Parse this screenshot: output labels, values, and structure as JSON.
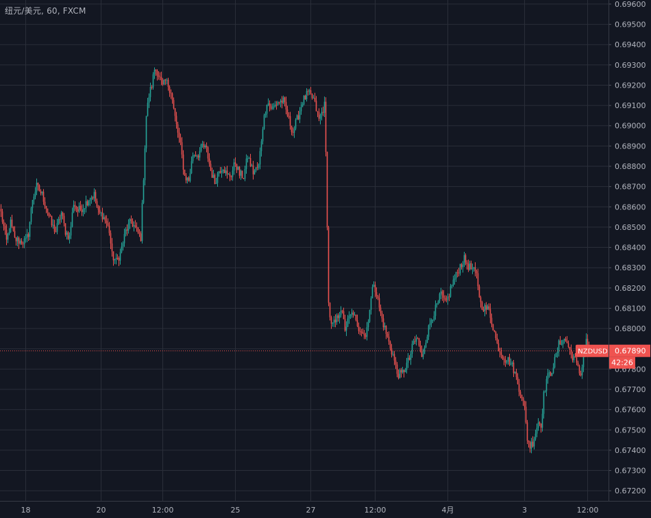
{
  "symbol_header": "纽元/美元, 60, FXCM",
  "colors": {
    "background": "#131722",
    "grid": "#2a2e39",
    "up": "#26a69a",
    "down": "#ef5350",
    "axis_text": "#b2b5be",
    "price_line": "#ef5350"
  },
  "chart_data": {
    "type": "candlestick",
    "title": "纽元/美元, 60, FXCM",
    "symbol": "NZDUSD",
    "last_price": "0.67890",
    "countdown": "42:26",
    "grid": true,
    "ylim": [
      0.6715,
      0.6962
    ],
    "y_ticks": [
      "0.69600",
      "0.69500",
      "0.69400",
      "0.69300",
      "0.69200",
      "0.69100",
      "0.69000",
      "0.68900",
      "0.68800",
      "0.68700",
      "0.68600",
      "0.68500",
      "0.68400",
      "0.68300",
      "0.68200",
      "0.68100",
      "0.68000",
      "0.67900",
      "0.67800",
      "0.67700",
      "0.67600",
      "0.67500",
      "0.67400",
      "0.67300",
      "0.67200"
    ],
    "x_ticks": [
      {
        "label": "18",
        "index": 18
      },
      {
        "label": "20",
        "index": 73
      },
      {
        "label": "12:00",
        "index": 118
      },
      {
        "label": "25",
        "index": 171
      },
      {
        "label": "27",
        "index": 226
      },
      {
        "label": "12:00",
        "index": 273
      },
      {
        "label": "4月",
        "index": 326
      },
      {
        "label": "3",
        "index": 382
      },
      {
        "label": "12:00",
        "index": 428
      }
    ],
    "n_candles": 431,
    "anchors": [
      [
        0,
        0.6857
      ],
      [
        4,
        0.6843
      ],
      [
        7,
        0.6852
      ],
      [
        10,
        0.6844
      ],
      [
        14,
        0.6843
      ],
      [
        18,
        0.6843
      ],
      [
        20,
        0.6847
      ],
      [
        23,
        0.6864
      ],
      [
        26,
        0.687
      ],
      [
        30,
        0.6866
      ],
      [
        33,
        0.686
      ],
      [
        37,
        0.6851
      ],
      [
        40,
        0.6848
      ],
      [
        44,
        0.6857
      ],
      [
        47,
        0.6848
      ],
      [
        50,
        0.6845
      ],
      [
        53,
        0.6862
      ],
      [
        56,
        0.6858
      ],
      [
        60,
        0.686
      ],
      [
        64,
        0.6864
      ],
      [
        68,
        0.6866
      ],
      [
        71,
        0.6857
      ],
      [
        74,
        0.6856
      ],
      [
        77,
        0.6852
      ],
      [
        79,
        0.6848
      ],
      [
        81,
        0.6836
      ],
      [
        84,
        0.6833
      ],
      [
        87,
        0.6837
      ],
      [
        91,
        0.6848
      ],
      [
        95,
        0.6853
      ],
      [
        100,
        0.6847
      ],
      [
        102,
        0.6845
      ],
      [
        104,
        0.6875
      ],
      [
        106,
        0.6905
      ],
      [
        108,
        0.6915
      ],
      [
        110,
        0.692
      ],
      [
        112,
        0.6928
      ],
      [
        114,
        0.6927
      ],
      [
        116,
        0.6923
      ],
      [
        118,
        0.6919
      ],
      [
        120,
        0.6922
      ],
      [
        122,
        0.692
      ],
      [
        124,
        0.6917
      ],
      [
        126,
        0.6908
      ],
      [
        128,
        0.69
      ],
      [
        131,
        0.689
      ],
      [
        134,
        0.6875
      ],
      [
        137,
        0.6873
      ],
      [
        140,
        0.6886
      ],
      [
        144,
        0.6886
      ],
      [
        147,
        0.689
      ],
      [
        150,
        0.6888
      ],
      [
        153,
        0.6878
      ],
      [
        156,
        0.6872
      ],
      [
        159,
        0.6878
      ],
      [
        162,
        0.688
      ],
      [
        165,
        0.6875
      ],
      [
        168,
        0.6876
      ],
      [
        171,
        0.6882
      ],
      [
        174,
        0.6876
      ],
      [
        177,
        0.6875
      ],
      [
        180,
        0.6885
      ],
      [
        184,
        0.6877
      ],
      [
        188,
        0.688
      ],
      [
        191,
        0.69
      ],
      [
        194,
        0.6912
      ],
      [
        198,
        0.6908
      ],
      [
        202,
        0.6912
      ],
      [
        206,
        0.6912
      ],
      [
        210,
        0.6903
      ],
      [
        213,
        0.6897
      ],
      [
        216,
        0.6903
      ],
      [
        220,
        0.6912
      ],
      [
        224,
        0.6916
      ],
      [
        228,
        0.6913
      ],
      [
        232,
        0.6903
      ],
      [
        236,
        0.691
      ],
      [
        237,
        0.6886
      ],
      [
        238,
        0.6852
      ],
      [
        239,
        0.6812
      ],
      [
        241,
        0.6801
      ],
      [
        244,
        0.6803
      ],
      [
        248,
        0.681
      ],
      [
        251,
        0.68
      ],
      [
        254,
        0.6805
      ],
      [
        257,
        0.6808
      ],
      [
        260,
        0.68
      ],
      [
        263,
        0.68
      ],
      [
        266,
        0.6796
      ],
      [
        269,
        0.681
      ],
      [
        272,
        0.6823
      ],
      [
        274,
        0.6817
      ],
      [
        277,
        0.6807
      ],
      [
        280,
        0.68
      ],
      [
        283,
        0.6793
      ],
      [
        286,
        0.6787
      ],
      [
        289,
        0.6778
      ],
      [
        292,
        0.6777
      ],
      [
        295,
        0.6781
      ],
      [
        298,
        0.6785
      ],
      [
        301,
        0.6793
      ],
      [
        304,
        0.6795
      ],
      [
        307,
        0.6785
      ],
      [
        310,
        0.6795
      ],
      [
        314,
        0.6805
      ],
      [
        318,
        0.6811
      ],
      [
        321,
        0.6817
      ],
      [
        324,
        0.6812
      ],
      [
        326,
        0.6815
      ],
      [
        329,
        0.6822
      ],
      [
        332,
        0.6826
      ],
      [
        335,
        0.6831
      ],
      [
        338,
        0.6834
      ],
      [
        341,
        0.6831
      ],
      [
        344,
        0.6829
      ],
      [
        347,
        0.6826
      ],
      [
        350,
        0.6812
      ],
      [
        353,
        0.681
      ],
      [
        356,
        0.6809
      ],
      [
        359,
        0.6801
      ],
      [
        362,
        0.6792
      ],
      [
        365,
        0.6788
      ],
      [
        368,
        0.6785
      ],
      [
        371,
        0.6784
      ],
      [
        374,
        0.678
      ],
      [
        377,
        0.6773
      ],
      [
        380,
        0.6767
      ],
      [
        382,
        0.676
      ],
      [
        384,
        0.6746
      ],
      [
        386,
        0.6742
      ],
      [
        388,
        0.6744
      ],
      [
        390,
        0.6749
      ],
      [
        392,
        0.6754
      ],
      [
        394,
        0.6753
      ],
      [
        396,
        0.6767
      ],
      [
        398,
        0.6775
      ],
      [
        401,
        0.6778
      ],
      [
        404,
        0.6784
      ],
      [
        407,
        0.6792
      ],
      [
        410,
        0.6795
      ],
      [
        413,
        0.6793
      ],
      [
        416,
        0.6787
      ],
      [
        418,
        0.6786
      ],
      [
        421,
        0.678
      ],
      [
        423,
        0.6777
      ],
      [
        425,
        0.6788
      ],
      [
        427,
        0.6795
      ],
      [
        428,
        0.679
      ],
      [
        430,
        0.6789
      ]
    ]
  }
}
